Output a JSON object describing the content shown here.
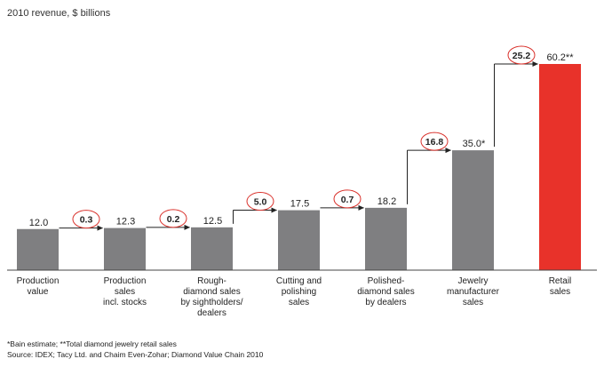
{
  "subtitle": "2010 revenue, $ billions",
  "chart_data": {
    "type": "bar",
    "ylabel": "",
    "categories": [
      "Production\nvalue",
      "Production\nsales\nincl. stocks",
      "Rough-\ndiamond sales\nby sightholders/\ndealers",
      "Cutting and\npolishing\nsales",
      "Polished-\ndiamond sales\nby dealers",
      "Jewelry\nmanufacturer\nsales",
      "Retail\nsales"
    ],
    "values": [
      12.0,
      12.3,
      12.5,
      17.5,
      18.2,
      35.0,
      60.2
    ],
    "value_labels": [
      "12.0",
      "12.3",
      "12.5",
      "17.5",
      "18.2",
      "35.0*",
      "60.2**"
    ],
    "increments": [
      {
        "from": 0,
        "to": 1,
        "label": "0.3"
      },
      {
        "from": 1,
        "to": 2,
        "label": "0.2"
      },
      {
        "from": 2,
        "to": 3,
        "label": "5.0"
      },
      {
        "from": 3,
        "to": 4,
        "label": "0.7"
      },
      {
        "from": 4,
        "to": 5,
        "label": "16.8"
      },
      {
        "from": 5,
        "to": 6,
        "label": "25.2"
      }
    ],
    "ylim": [
      0,
      66
    ],
    "grid": false,
    "colors": {
      "bar": "#7f7f81",
      "highlight": "#e8322a",
      "increment_ring": "#d9302a",
      "arrow": "#222222"
    },
    "highlight_index": 6
  },
  "footnotes": [
    "*Bain estimate; **Total diamond jewelry retail sales",
    "Source: IDEX; Tacy Ltd. and Chaim Even-Zohar; Diamond Value Chain 2010"
  ]
}
